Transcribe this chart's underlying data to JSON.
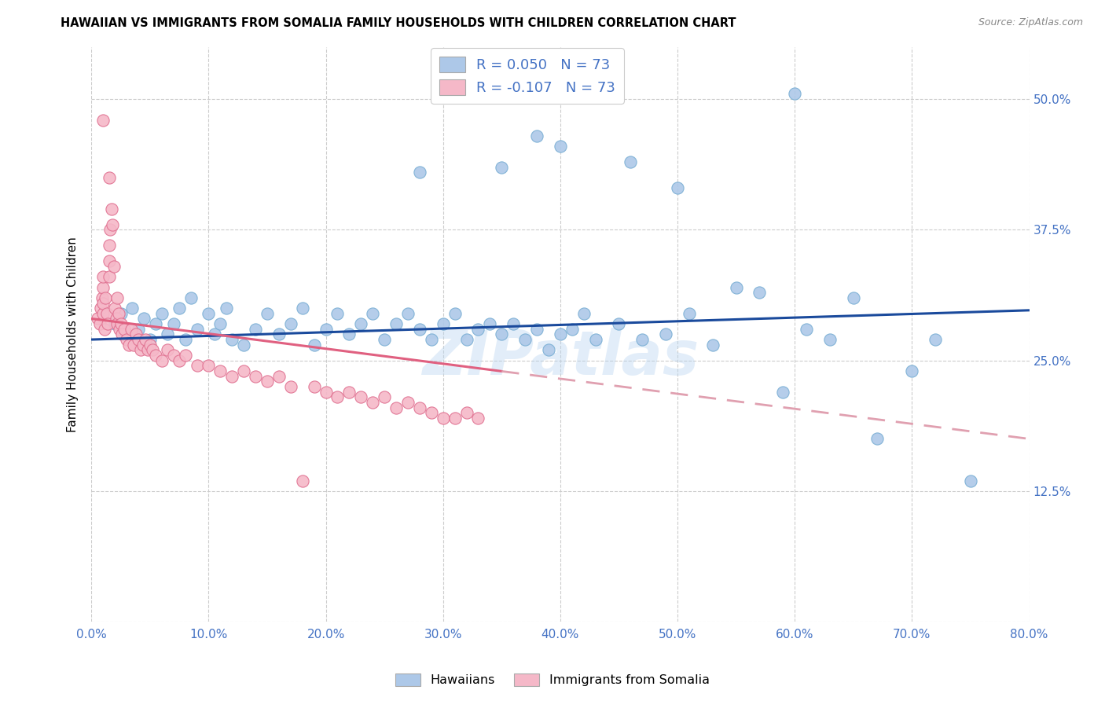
{
  "title": "HAWAIIAN VS IMMIGRANTS FROM SOMALIA FAMILY HOUSEHOLDS WITH CHILDREN CORRELATION CHART",
  "source": "Source: ZipAtlas.com",
  "ylabel": "Family Households with Children",
  "xlim": [
    0.0,
    0.8
  ],
  "ylim": [
    0.0,
    0.55
  ],
  "xtick_values": [
    0.0,
    0.1,
    0.2,
    0.3,
    0.4,
    0.5,
    0.6,
    0.7,
    0.8
  ],
  "ytick_values": [
    0.0,
    0.125,
    0.25,
    0.375,
    0.5
  ],
  "ytick_labels": [
    "",
    "12.5%",
    "25.0%",
    "37.5%",
    "50.0%"
  ],
  "hawaiian_color": "#adc8e8",
  "hawaiian_edge_color": "#7aafd4",
  "somalia_color": "#f5b8c8",
  "somalia_edge_color": "#e07090",
  "trend_hawaiian_color": "#1a4a9c",
  "trend_somalia_solid_color": "#e06080",
  "trend_somalia_dash_color": "#e0a0b0",
  "watermark": "ZIPatlas",
  "legend_label_hawaiians": "Hawaiians",
  "legend_label_somalia": "Immigrants from Somalia",
  "haw_r": 0.05,
  "som_r": -0.107,
  "n": 73,
  "hawaiian_x": [
    0.02,
    0.025,
    0.03,
    0.035,
    0.04,
    0.045,
    0.05,
    0.055,
    0.06,
    0.065,
    0.07,
    0.075,
    0.08,
    0.085,
    0.09,
    0.1,
    0.105,
    0.11,
    0.115,
    0.12,
    0.13,
    0.14,
    0.15,
    0.16,
    0.17,
    0.18,
    0.19,
    0.2,
    0.21,
    0.22,
    0.23,
    0.24,
    0.25,
    0.26,
    0.27,
    0.28,
    0.29,
    0.3,
    0.31,
    0.32,
    0.33,
    0.34,
    0.35,
    0.36,
    0.37,
    0.38,
    0.39,
    0.4,
    0.41,
    0.42,
    0.43,
    0.45,
    0.47,
    0.49,
    0.51,
    0.53,
    0.55,
    0.57,
    0.59,
    0.61,
    0.63,
    0.65,
    0.67,
    0.7,
    0.72,
    0.75,
    0.35,
    0.4,
    0.28,
    0.5,
    0.6,
    0.38,
    0.46
  ],
  "hawaiian_y": [
    0.285,
    0.295,
    0.275,
    0.3,
    0.28,
    0.29,
    0.27,
    0.285,
    0.295,
    0.275,
    0.285,
    0.3,
    0.27,
    0.31,
    0.28,
    0.295,
    0.275,
    0.285,
    0.3,
    0.27,
    0.265,
    0.28,
    0.295,
    0.275,
    0.285,
    0.3,
    0.265,
    0.28,
    0.295,
    0.275,
    0.285,
    0.295,
    0.27,
    0.285,
    0.295,
    0.28,
    0.27,
    0.285,
    0.295,
    0.27,
    0.28,
    0.285,
    0.275,
    0.285,
    0.27,
    0.28,
    0.26,
    0.275,
    0.28,
    0.295,
    0.27,
    0.285,
    0.27,
    0.275,
    0.295,
    0.265,
    0.32,
    0.315,
    0.22,
    0.28,
    0.27,
    0.31,
    0.175,
    0.24,
    0.27,
    0.135,
    0.435,
    0.455,
    0.43,
    0.415,
    0.505,
    0.465,
    0.44
  ],
  "somalia_x": [
    0.005,
    0.007,
    0.008,
    0.009,
    0.01,
    0.01,
    0.01,
    0.01,
    0.011,
    0.012,
    0.013,
    0.014,
    0.015,
    0.015,
    0.015,
    0.016,
    0.017,
    0.018,
    0.019,
    0.02,
    0.021,
    0.022,
    0.022,
    0.023,
    0.024,
    0.025,
    0.026,
    0.028,
    0.03,
    0.032,
    0.034,
    0.036,
    0.038,
    0.04,
    0.042,
    0.044,
    0.046,
    0.048,
    0.05,
    0.052,
    0.055,
    0.06,
    0.065,
    0.07,
    0.075,
    0.08,
    0.09,
    0.1,
    0.11,
    0.12,
    0.13,
    0.14,
    0.15,
    0.16,
    0.17,
    0.18,
    0.19,
    0.2,
    0.21,
    0.22,
    0.23,
    0.24,
    0.25,
    0.26,
    0.27,
    0.28,
    0.29,
    0.3,
    0.31,
    0.32,
    0.33,
    0.01,
    0.015
  ],
  "somalia_y": [
    0.29,
    0.285,
    0.3,
    0.31,
    0.295,
    0.32,
    0.305,
    0.33,
    0.28,
    0.31,
    0.295,
    0.285,
    0.33,
    0.345,
    0.36,
    0.375,
    0.395,
    0.38,
    0.34,
    0.3,
    0.29,
    0.285,
    0.31,
    0.295,
    0.28,
    0.285,
    0.275,
    0.28,
    0.27,
    0.265,
    0.28,
    0.265,
    0.275,
    0.27,
    0.26,
    0.265,
    0.27,
    0.26,
    0.265,
    0.26,
    0.255,
    0.25,
    0.26,
    0.255,
    0.25,
    0.255,
    0.245,
    0.245,
    0.24,
    0.235,
    0.24,
    0.235,
    0.23,
    0.235,
    0.225,
    0.135,
    0.225,
    0.22,
    0.215,
    0.22,
    0.215,
    0.21,
    0.215,
    0.205,
    0.21,
    0.205,
    0.2,
    0.195,
    0.195,
    0.2,
    0.195,
    0.48,
    0.425
  ]
}
